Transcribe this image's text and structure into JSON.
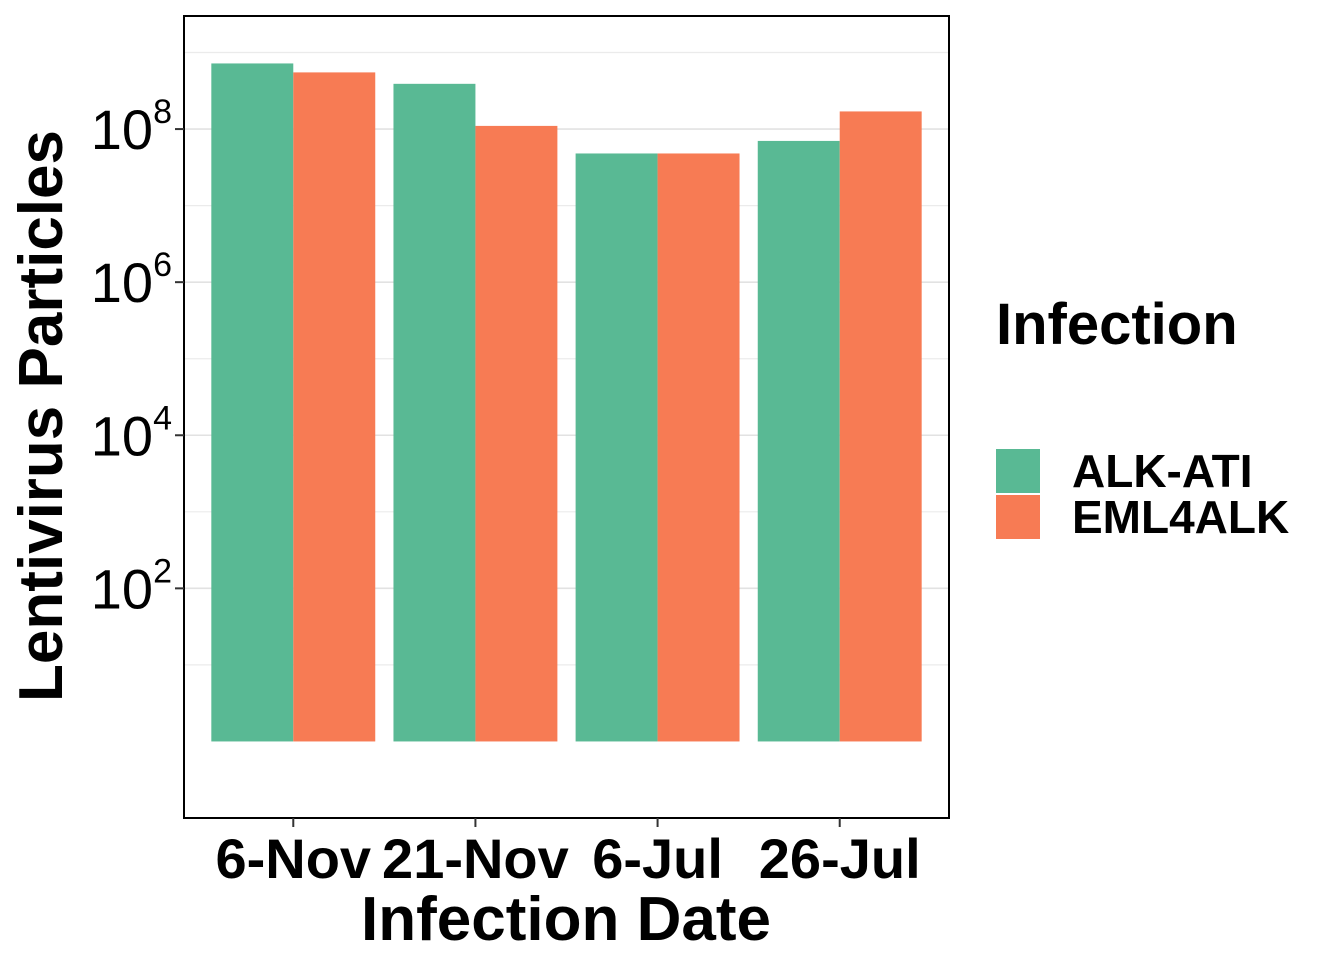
{
  "chart_data": {
    "type": "bar",
    "title": "",
    "xlabel": "Infection Date",
    "ylabel": "Lentivirus Particles",
    "categories": [
      "6-Nov",
      "21-Nov",
      "6-Jul",
      "26-Jul"
    ],
    "series": [
      {
        "name": "ALK-ATI",
        "color": "#59b994",
        "values": [
          720000000,
          390000000,
          48000000,
          70000000
        ]
      },
      {
        "name": "EML4ALK",
        "color": "#f77b54",
        "values": [
          550000000,
          110000000,
          48000000,
          170000000
        ]
      }
    ],
    "yscale": "log10",
    "ylim": [
      0.1,
      3000000000
    ],
    "bar_baseline": 1,
    "yticks": [
      {
        "base": "10",
        "exp": "2",
        "value": 100
      },
      {
        "base": "10",
        "exp": "4",
        "value": 10000
      },
      {
        "base": "10",
        "exp": "6",
        "value": 1000000
      },
      {
        "base": "10",
        "exp": "8",
        "value": 100000000
      }
    ],
    "minor_grid": [
      10,
      1000,
      100000,
      10000000,
      1000000000
    ],
    "grid": true,
    "legend": {
      "title": "Infection",
      "position": "right"
    }
  }
}
